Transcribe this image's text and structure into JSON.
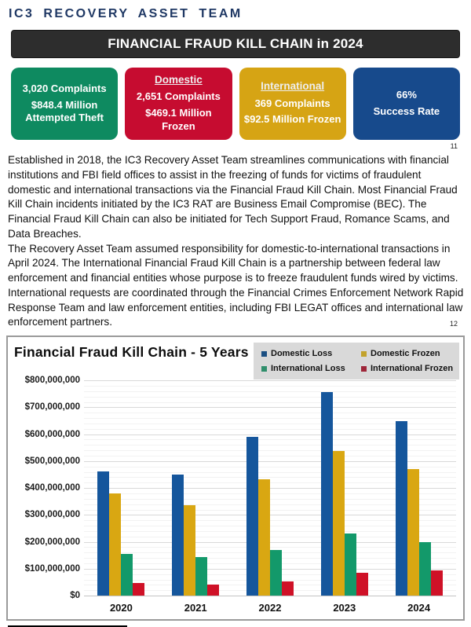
{
  "page": {
    "title": "IC3 RECOVERY ASSET TEAM"
  },
  "banner": {
    "text": "FINANCIAL FRAUD KILL CHAIN in 2024",
    "bg": "#2d2d2d"
  },
  "stat_boxes": [
    {
      "header": "",
      "lines": [
        "3,020 Complaints",
        "$848.4 Million Attempted Theft"
      ],
      "color": "#0e8a60"
    },
    {
      "header": "Domestic",
      "lines": [
        "2,651 Complaints",
        "$469.1 Million Frozen"
      ],
      "color": "#c60c30"
    },
    {
      "header": "International",
      "lines": [
        "369 Complaints",
        "$92.5 Million Frozen"
      ],
      "color": "#d6a414"
    },
    {
      "header": "",
      "lines": [
        "66%",
        "Success Rate"
      ],
      "color": "#174a8c"
    }
  ],
  "footnote_markers": {
    "first": "11",
    "second": "12"
  },
  "paragraphs": [
    "Established in 2018, the IC3 Recovery Asset Team streamlines communications with financial institutions and FBI field offices to assist in the freezing of funds for victims of fraudulent domestic and international transactions via the Financial Fraud Kill Chain. Most Financial Fraud Kill Chain incidents initiated by the IC3 RAT are Business Email Compromise (BEC). The Financial Fraud Kill Chain can also be initiated for Tech Support Fraud, Romance Scams, and Data Breaches.",
    "The Recovery Asset Team assumed responsibility for domestic-to-international transactions in April 2024. The International Financial Fraud Kill Chain is a partnership between federal law enforcement and financial entities whose purpose is to freeze fraudulent funds wired by victims. International requests are coordinated through the Financial Crimes Enforcement Network Rapid Response Team and law enforcement entities, including FBI LEGAT offices and international law enforcement partners."
  ],
  "chart_data": {
    "type": "bar",
    "title": "Financial Fraud Kill Chain - 5 Years",
    "categories": [
      "2020",
      "2021",
      "2022",
      "2023",
      "2024"
    ],
    "series": [
      {
        "name": "Domestic Loss",
        "color": "#15569c",
        "marker_color": "#1b4f82",
        "values": [
          462000000,
          449000000,
          590000000,
          758000000,
          650000000
        ]
      },
      {
        "name": "Domestic Frozen",
        "color": "#d9a712",
        "marker_color": "#c2a22c",
        "values": [
          380000000,
          337000000,
          434000000,
          538000000,
          469100000
        ]
      },
      {
        "name": "International Loss",
        "color": "#13996a",
        "marker_color": "#2f8e6b",
        "values": [
          156000000,
          143000000,
          170000000,
          232000000,
          198400000
        ]
      },
      {
        "name": "International Frozen",
        "color": "#cf1127",
        "marker_color": "#9e2639",
        "values": [
          48000000,
          40000000,
          54000000,
          84000000,
          92500000
        ]
      }
    ],
    "ylim": [
      0,
      800000000
    ],
    "y_tick_step": 100000000,
    "y_minor_step": 20000000,
    "y_tick_labels": [
      "$0",
      "$100,000,000",
      "$200,000,000",
      "$300,000,000",
      "$400,000,000",
      "$500,000,000",
      "$600,000,000",
      "$700,000,000",
      "$800,000,000"
    ],
    "xlabel": "",
    "ylabel": "",
    "grid": true,
    "legend_position": "top-right"
  }
}
